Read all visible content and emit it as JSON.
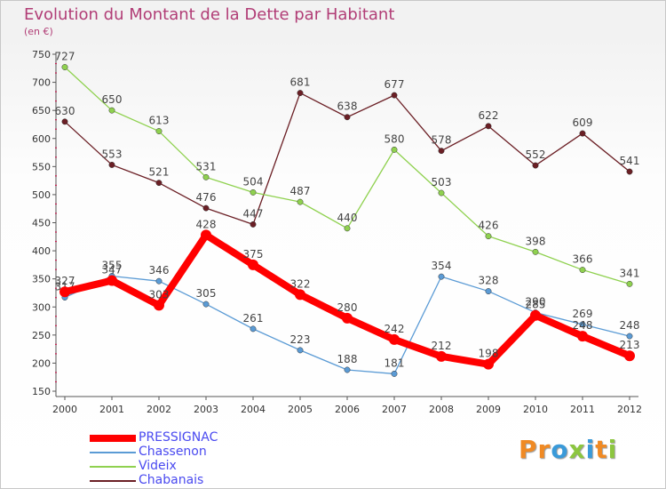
{
  "chart_data": {
    "type": "line",
    "title": "Evolution du Montant de la Dette par Habitant",
    "subtitle": "(en €)",
    "xlabel": "",
    "ylabel": "",
    "categories": [
      "2000",
      "2001",
      "2002",
      "2003",
      "2004",
      "2005",
      "2006",
      "2007",
      "2008",
      "2009",
      "2010",
      "2011",
      "2012"
    ],
    "ylim": [
      150,
      750
    ],
    "yticks": [
      150,
      200,
      250,
      300,
      350,
      400,
      450,
      500,
      550,
      600,
      650,
      700,
      750
    ],
    "grid": false,
    "legend_position": "bottom-left",
    "series": [
      {
        "name": "PRESSIGNAC",
        "color": "#ff0000",
        "values": [
          327,
          347,
          303,
          428,
          375,
          322,
          280,
          242,
          212,
          198,
          285,
          248,
          213
        ]
      },
      {
        "name": "Chassenon",
        "color": "#5b9bd5",
        "values": [
          317,
          355,
          346,
          305,
          261,
          223,
          188,
          181,
          354,
          328,
          290,
          269,
          248
        ]
      },
      {
        "name": "Videix",
        "color": "#8fd14f",
        "values": [
          727,
          650,
          613,
          531,
          504,
          487,
          440,
          580,
          503,
          426,
          398,
          366,
          341
        ]
      },
      {
        "name": "Chabanais",
        "color": "#6b1f25",
        "values": [
          630,
          553,
          521,
          476,
          447,
          681,
          638,
          677,
          578,
          622,
          552,
          609,
          541
        ]
      }
    ]
  },
  "legend": {
    "items": [
      {
        "label": "PRESSIGNAC",
        "color": "#ff0000"
      },
      {
        "label": "Chassenon",
        "color": "#5b9bd5"
      },
      {
        "label": "Videix",
        "color": "#8fd14f"
      },
      {
        "label": "Chabanais",
        "color": "#6b1f25"
      }
    ],
    "text_color": "#4a4af0"
  },
  "logo": {
    "text": "Proxiti",
    "letters": [
      {
        "ch": "P",
        "color": "#f08a24"
      },
      {
        "ch": "r",
        "color": "#f08a24"
      },
      {
        "ch": "o",
        "color": "#3a9ad9"
      },
      {
        "ch": "x",
        "color": "#8cc63f"
      },
      {
        "ch": "i",
        "color": "#3a9ad9"
      },
      {
        "ch": "t",
        "color": "#f08a24"
      },
      {
        "ch": "i",
        "color": "#8cc63f"
      }
    ]
  }
}
